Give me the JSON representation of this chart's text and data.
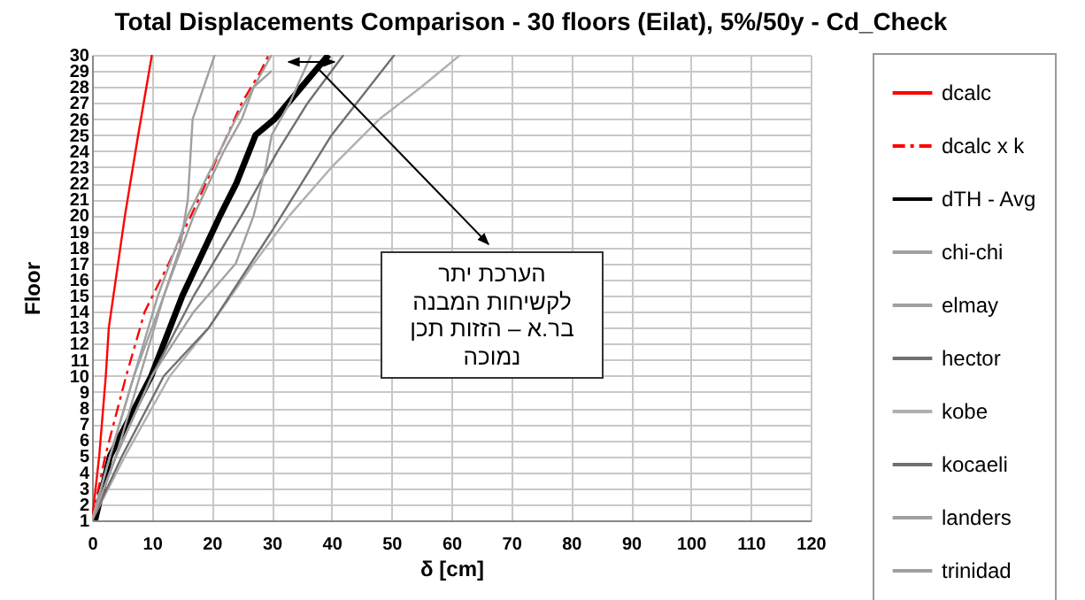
{
  "chart_data": {
    "type": "line",
    "title": "Total Displacements Comparison - 30 floors (Eilat), 5%/50y - Cd_Check",
    "xlabel": "δ [cm]",
    "ylabel": "Floor",
    "xlim": [
      0,
      120
    ],
    "xticks": [
      0,
      10,
      20,
      30,
      40,
      50,
      60,
      70,
      80,
      90,
      100,
      110,
      120
    ],
    "ylim": [
      1,
      30
    ],
    "yticks": [
      1,
      2,
      3,
      4,
      5,
      6,
      7,
      8,
      9,
      10,
      11,
      12,
      13,
      14,
      15,
      16,
      17,
      18,
      19,
      20,
      21,
      22,
      23,
      24,
      25,
      26,
      27,
      28,
      29,
      30
    ],
    "grid": true,
    "legend": "right",
    "marker": "none",
    "annotations": [
      "הערכת יתר\nלקשיחות המבנה\nבר.א – הזזות תכן\nנמוכה"
    ],
    "series": [
      {
        "name": "dcalc",
        "color": "#ff0000",
        "line_style": "solid",
        "x": [
          0,
          1.2,
          2.3,
          2.8,
          5.5,
          7.7,
          10
        ],
        "values": [
          1,
          5,
          10,
          13,
          20,
          25,
          30
        ]
      },
      {
        "name": "dcalc x k",
        "color": "#ff0000",
        "line_style": "dashed",
        "x": [
          0,
          2.2,
          5.7,
          8.8,
          12.8,
          17.8,
          22.6,
          25,
          28.2,
          29.5
        ],
        "values": [
          1,
          5,
          10,
          14,
          17,
          21,
          25,
          27,
          29,
          30
        ]
      },
      {
        "name": "dTH - Avg",
        "color": "#000000",
        "line_style": "solid",
        "x": [
          0.5,
          3,
          9.9,
          15.1,
          21.4,
          24.1,
          27.3,
          30.5,
          35,
          39.5
        ],
        "values": [
          1,
          5,
          10,
          15,
          20,
          22,
          25,
          26,
          28,
          30
        ]
      },
      {
        "name": "chi-chi",
        "color": "#a0a0a0",
        "line_style": "solid",
        "x": [
          0,
          4,
          8,
          12,
          14.7,
          16,
          16.8,
          20.5
        ],
        "values": [
          1,
          5,
          10,
          15,
          18,
          21,
          26,
          30
        ]
      },
      {
        "name": "elmay",
        "color": "#a0a0a0",
        "line_style": "solid",
        "x": [
          0,
          3,
          7,
          11,
          16,
          20,
          24,
          27,
          30
        ],
        "values": [
          1,
          5,
          10,
          15,
          20,
          23,
          26,
          28,
          30
        ]
      },
      {
        "name": "hector",
        "color": "#707070",
        "line_style": "solid",
        "x": [
          0,
          4,
          10,
          17,
          25,
          31,
          36,
          42
        ],
        "values": [
          1,
          5,
          10,
          15,
          20,
          24,
          27,
          30
        ]
      },
      {
        "name": "kobe",
        "color": "#b0b0b0",
        "line_style": "solid",
        "x": [
          0,
          5.5,
          13,
          19.5,
          27,
          33,
          40,
          48,
          55,
          61.5
        ],
        "values": [
          1,
          5,
          10,
          13,
          17,
          20,
          23,
          26,
          28,
          30
        ]
      },
      {
        "name": "kocaeli",
        "color": "#707070",
        "line_style": "solid",
        "x": [
          0,
          5,
          12,
          19.5,
          30,
          40,
          50.5
        ],
        "values": [
          1,
          5,
          10,
          13,
          19,
          25,
          30
        ]
      },
      {
        "name": "landers",
        "color": "#a0a0a0",
        "line_style": "solid",
        "x": [
          0,
          4,
          10,
          17,
          24,
          27,
          29,
          30,
          33,
          36.6
        ],
        "values": [
          1,
          5,
          10,
          14,
          17,
          20,
          23,
          25,
          27,
          30
        ]
      },
      {
        "name": "trinidad",
        "color": "#a0a0a0",
        "line_style": "solid",
        "x": [
          0,
          3,
          7,
          12,
          17,
          22,
          25,
          27,
          30
        ],
        "values": [
          1,
          5,
          10,
          15,
          20,
          24,
          26,
          28,
          29
        ]
      }
    ]
  }
}
